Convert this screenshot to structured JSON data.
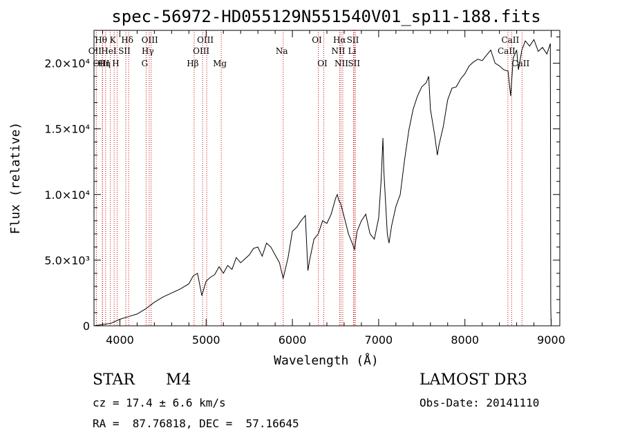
{
  "chart_data": {
    "type": "line",
    "title": "spec-56972-HD055129N551540V01_sp11-188.fits",
    "xlabel": "Wavelength (Å)",
    "ylabel": "Flux (relative)",
    "xlim": [
      3700,
      9100
    ],
    "ylim": [
      0,
      22500
    ],
    "x_ticks": [
      4000,
      5000,
      6000,
      7000,
      8000,
      9000
    ],
    "x_tick_labels": [
      "4000",
      "5000",
      "6000",
      "7000",
      "8000",
      "9000"
    ],
    "y_ticks": [
      0,
      5000,
      10000,
      15000,
      20000
    ],
    "y_tick_labels": [
      "0",
      "5.0×10³",
      "1.0×10⁴",
      "1.5×10⁴",
      "2.0×10⁴"
    ],
    "series": [
      {
        "name": "spectrum",
        "x": [
          3700,
          3800,
          3900,
          4000,
          4100,
          4200,
          4300,
          4400,
          4500,
          4600,
          4700,
          4800,
          4850,
          4900,
          4950,
          5000,
          5050,
          5100,
          5150,
          5200,
          5250,
          5300,
          5350,
          5400,
          5450,
          5500,
          5550,
          5600,
          5650,
          5700,
          5750,
          5800,
          5850,
          5893,
          5950,
          6000,
          6050,
          6100,
          6150,
          6180,
          6200,
          6250,
          6300,
          6350,
          6400,
          6450,
          6500,
          6520,
          6540,
          6560,
          6600,
          6650,
          6700,
          6720,
          6750,
          6800,
          6850,
          6900,
          6950,
          7000,
          7030,
          7050,
          7060,
          7100,
          7120,
          7150,
          7200,
          7250,
          7300,
          7350,
          7400,
          7450,
          7500,
          7550,
          7580,
          7600,
          7620,
          7650,
          7680,
          7700,
          7750,
          7800,
          7850,
          7900,
          7950,
          8000,
          8050,
          8100,
          8150,
          8200,
          8250,
          8300,
          8350,
          8400,
          8450,
          8500,
          8530,
          8560,
          8600,
          8620,
          8660,
          8700,
          8750,
          8800,
          8850,
          8900,
          8950,
          8990,
          8995,
          9000
        ],
        "y": [
          0,
          100,
          200,
          500,
          700,
          900,
          1300,
          1800,
          2200,
          2500,
          2800,
          3200,
          3800,
          4000,
          2300,
          3400,
          3700,
          3900,
          4500,
          4000,
          4600,
          4300,
          5200,
          4800,
          5100,
          5400,
          5900,
          6000,
          5300,
          6300,
          6000,
          5400,
          4800,
          3600,
          5200,
          7200,
          7500,
          8000,
          8400,
          4200,
          5000,
          6600,
          7000,
          8000,
          7800,
          8500,
          9700,
          10000,
          9500,
          9300,
          8300,
          7000,
          6200,
          5800,
          7200,
          8000,
          8500,
          7000,
          6600,
          8200,
          11200,
          14300,
          11800,
          7000,
          6300,
          7600,
          9100,
          10000,
          12600,
          14900,
          16500,
          17500,
          18200,
          18500,
          19000,
          16500,
          15700,
          14500,
          13000,
          13800,
          15200,
          17200,
          18100,
          18200,
          18800,
          19200,
          19800,
          20100,
          20300,
          20200,
          20600,
          21000,
          20000,
          19800,
          19500,
          19400,
          17500,
          20400,
          21000,
          19500,
          21000,
          21700,
          21300,
          21800,
          20900,
          21200,
          20700,
          21500,
          1500,
          0
        ]
      }
    ],
    "lines": [
      {
        "label": "Hθ",
        "wavelength": 3797,
        "row": 1
      },
      {
        "label": "OII",
        "wavelength": 3727,
        "row": 2
      },
      {
        "label": "OIII",
        "wavelength": 3800,
        "row": 3
      },
      {
        "label": "K",
        "wavelength": 3934,
        "row": 1
      },
      {
        "label": "HeI",
        "wavelength": 3889,
        "row": 2
      },
      {
        "label": "Hη",
        "wavelength": 3835,
        "row": 3
      },
      {
        "label": "H",
        "wavelength": 3968,
        "row": 3
      },
      {
        "label": "SII",
        "wavelength": 4069,
        "row": 2
      },
      {
        "label": "Hδ",
        "wavelength": 4102,
        "row": 1
      },
      {
        "label": "OIII",
        "wavelength": 4363,
        "row": 1
      },
      {
        "label": "Hγ",
        "wavelength": 4340,
        "row": 2
      },
      {
        "label": "G",
        "wavelength": 4304,
        "row": 3
      },
      {
        "label": "Hβ",
        "wavelength": 4861,
        "row": 3
      },
      {
        "label": "OIII",
        "wavelength": 5007,
        "row": 1
      },
      {
        "label": "OIII",
        "wavelength": 4959,
        "row": 2
      },
      {
        "label": "Mg",
        "wavelength": 5175,
        "row": 3
      },
      {
        "label": "Na",
        "wavelength": 5893,
        "row": 2
      },
      {
        "label": "OI",
        "wavelength": 6300,
        "row": 1
      },
      {
        "label": "OI",
        "wavelength": 6364,
        "row": 3
      },
      {
        "label": "Hα",
        "wavelength": 6563,
        "row": 1
      },
      {
        "label": "NII",
        "wavelength": 6548,
        "row": 2
      },
      {
        "label": "NII",
        "wavelength": 6584,
        "row": 3
      },
      {
        "label": "SII",
        "wavelength": 6717,
        "row": 1
      },
      {
        "label": "Li",
        "wavelength": 6708,
        "row": 2
      },
      {
        "label": "SII",
        "wavelength": 6731,
        "row": 3
      },
      {
        "label": "CaII",
        "wavelength": 8542,
        "row": 1
      },
      {
        "label": "CaII",
        "wavelength": 8498,
        "row": 2
      },
      {
        "label": "CaII",
        "wavelength": 8662,
        "row": 3
      }
    ]
  },
  "info": {
    "object_class": "STAR",
    "subclass": "M4",
    "survey": "LAMOST DR3",
    "cz": "cz = 17.4 ± 6.6 km/s",
    "obs_date": "Obs-Date: 20141110",
    "coords": "RA =  87.76818, DEC =  57.16645"
  },
  "colors": {
    "spectrum": "#000000",
    "lines": "#cc0000",
    "axes": "#000000"
  }
}
